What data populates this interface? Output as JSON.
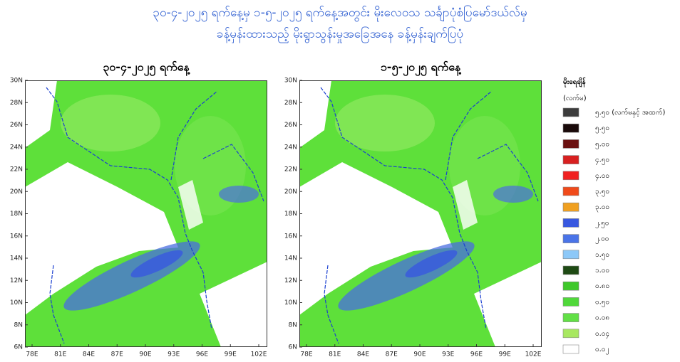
{
  "title": {
    "line1": "၃၀-၄-၂၀၂၅ ရက်နေ့မှ ၁-၅-၂၀၂၅ ရက်နေ့အတွင်း မိုးလေဝသ သင်္ချာပုံစံပြမော်ဒယ်လ်မှ",
    "line2": "ခန့်မှန်းထားသည့် မိုးရွာသွန်းမှုအခြေအနေ ခန့်မှန်းချက်ပြပုံ"
  },
  "panels": [
    {
      "title": "၃၀-၄-၂၀၂၅ ရက်နေ့"
    },
    {
      "title": "၁-၅-၂၀၂၅ ရက်နေ့"
    }
  ],
  "axes": {
    "lat": [
      "30N",
      "28N",
      "26N",
      "24N",
      "22N",
      "20N",
      "18N",
      "16N",
      "14N",
      "12N",
      "10N",
      "8N",
      "6N"
    ],
    "lon": [
      "78E",
      "81E",
      "84E",
      "87E",
      "90E",
      "93E",
      "96E",
      "99E",
      "102E"
    ]
  },
  "legend": {
    "title": "မိုးရေချိန်",
    "unit": "(လက်မ)",
    "items": [
      {
        "label": "၅.၅၀ (လက်မနှင့် အထက်)",
        "color": "#3c3c3c"
      },
      {
        "label": "၅.၅၀",
        "color": "#1a0a0a"
      },
      {
        "label": "၅.၀၀",
        "color": "#6b1010"
      },
      {
        "label": "၄.၅၀",
        "color": "#d82020"
      },
      {
        "label": "၄.၀၀",
        "color": "#f02020"
      },
      {
        "label": "၃.၅၀",
        "color": "#f04a1a"
      },
      {
        "label": "၃.၀၀",
        "color": "#f0a020"
      },
      {
        "label": "၂.၅၀",
        "color": "#3858e0"
      },
      {
        "label": "၂.၀၀",
        "color": "#4a74e8"
      },
      {
        "label": "၁.၅၀",
        "color": "#8cc8f8"
      },
      {
        "label": "၁.၀၀",
        "color": "#1e4a14"
      },
      {
        "label": "၀.၈၀",
        "color": "#3ec82a"
      },
      {
        "label": "၀.၅၀",
        "color": "#50d83a"
      },
      {
        "label": "၀.၀၈",
        "color": "#62e046"
      },
      {
        "label": "၀.၀၄",
        "color": "#a8e860"
      },
      {
        "label": "၀.၀၂",
        "color": "#ffffff"
      }
    ]
  }
}
